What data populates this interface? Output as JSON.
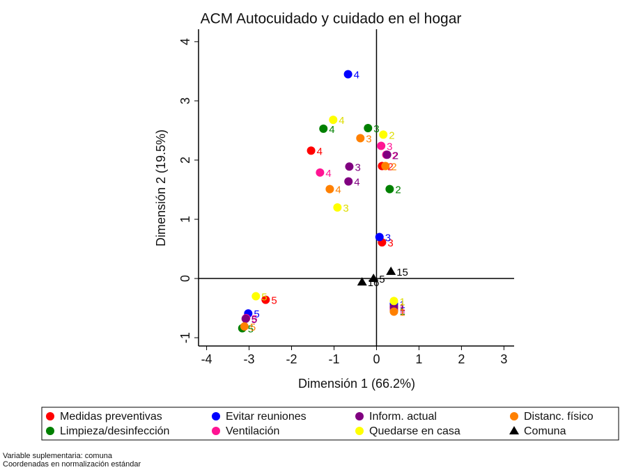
{
  "chart_data": {
    "type": "scatter",
    "title": "ACM Autocuidado y cuidado en el hogar",
    "xlabel": "Dimensión 1 (66.2%)",
    "ylabel": "Dimensión 2 (19.5%)",
    "xlim": [
      -4.19,
      3.24
    ],
    "ylim": [
      -1.14,
      4.21
    ],
    "xticks": [
      -4,
      -3,
      -2,
      -1,
      0,
      1,
      2,
      3
    ],
    "yticks": [
      -1,
      0,
      1,
      2,
      3,
      4
    ],
    "xline": 0,
    "yline": 0,
    "series": [
      {
        "name": "Medidas preventivas",
        "color": "#ff0000",
        "marker": "circle",
        "x": [
          -1.54,
          0.13,
          0.13,
          -2.61,
          0.41
        ],
        "values": [
          2.16,
          1.9,
          0.61,
          -0.36,
          -0.47
        ],
        "labels": [
          "4",
          "2",
          "3",
          "5",
          "1"
        ]
      },
      {
        "name": "Limpieza/desinfección",
        "color": "#008000",
        "marker": "circle",
        "x": [
          -1.25,
          -0.2,
          0.31,
          -3.16,
          0.41
        ],
        "values": [
          2.53,
          2.54,
          1.51,
          -0.84,
          -0.54
        ],
        "labels": [
          "4",
          "3",
          "2",
          "5",
          "1"
        ]
      },
      {
        "name": "Evitar reuniones",
        "color": "#0000ff",
        "marker": "circle",
        "x": [
          -0.67,
          0.07,
          -3.02,
          0.41
        ],
        "values": [
          3.45,
          0.7,
          -0.59,
          -0.43
        ],
        "labels": [
          "4",
          "3",
          "5",
          "1"
        ]
      },
      {
        "name": "Ventilación",
        "color": "#ff1493",
        "marker": "circle",
        "x": [
          -1.33,
          0.11,
          0.23,
          -3.07,
          0.41
        ],
        "values": [
          1.79,
          2.24,
          2.09,
          -0.67,
          -0.52
        ],
        "labels": [
          "4",
          "3",
          "2",
          "5",
          "1"
        ]
      },
      {
        "name": "Inform. actual",
        "color": "#800080",
        "marker": "circle",
        "x": [
          -0.64,
          -0.66,
          0.25,
          -3.08,
          0.41
        ],
        "values": [
          1.89,
          1.64,
          2.09,
          -0.68,
          -0.49
        ],
        "labels": [
          "3",
          "4",
          "2",
          "5",
          "1"
        ]
      },
      {
        "name": "Quedarse en casa",
        "color": "#ffff00",
        "marker": "circle",
        "x": [
          -1.02,
          0.16,
          -0.92,
          -2.84,
          0.41
        ],
        "values": [
          2.68,
          2.43,
          1.2,
          -0.3,
          -0.38
        ],
        "labels": [
          "4",
          "2",
          "3",
          "5",
          "1"
        ]
      },
      {
        "name": "Distanc. físico",
        "color": "#ff8000",
        "marker": "circle",
        "x": [
          -0.38,
          -1.1,
          0.21,
          -3.11,
          0.41
        ],
        "values": [
          2.37,
          1.51,
          1.9,
          -0.81,
          -0.56
        ],
        "labels": [
          "3",
          "4",
          "2",
          "5",
          "1"
        ]
      },
      {
        "name": "Comuna",
        "color": "#000000",
        "marker": "triangle",
        "x": [
          0.34,
          -0.07,
          -0.34
        ],
        "values": [
          0.12,
          0.0,
          -0.06
        ],
        "labels": [
          "15",
          "5",
          "16"
        ]
      }
    ],
    "notes": [
      "Variable suplementaria: comuna",
      "Coordenadas en normalización estándar"
    ]
  }
}
